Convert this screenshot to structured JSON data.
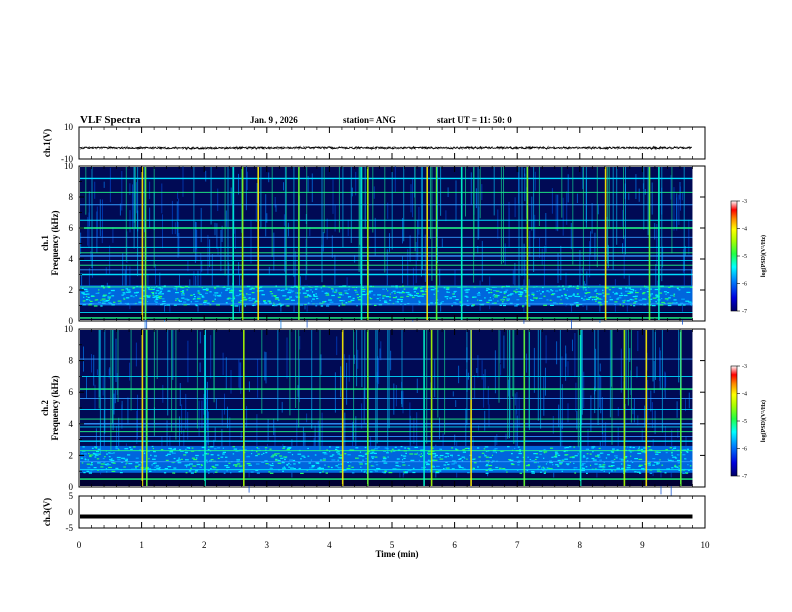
{
  "header": {
    "title": "VLF Spectra",
    "date": "Jan. 9 , 2026",
    "station": "station= ANG",
    "start": "start UT =  11: 50: 0"
  },
  "colors": {
    "axis": "#000000",
    "background": "#ffffff",
    "waveform": "#000000",
    "colormap": [
      "#000066",
      "#0000cc",
      "#0044ff",
      "#00aaff",
      "#00ffee",
      "#22ff44",
      "#aaff00",
      "#ffff00",
      "#ff8800",
      "#ff0000",
      "#ffffff"
    ]
  },
  "chart_data": [
    {
      "type": "line",
      "name": "ch1-voltage",
      "ylabel": "ch.1(V)",
      "ylim": [
        -10,
        10
      ],
      "yticks": [
        "10",
        "-10"
      ],
      "x": [
        0,
        1,
        2,
        3,
        4,
        5,
        6,
        7,
        8,
        9,
        9.8
      ],
      "values": [
        -3,
        -3,
        -3.2,
        -3,
        -3,
        -3.1,
        -3,
        -3,
        -3,
        -3.1,
        -3
      ],
      "noise_amplitude": 0.6
    },
    {
      "type": "heatmap",
      "name": "ch1-spectrogram",
      "ylabel_1": "ch.1",
      "ylabel_2": "Frequency  (kHz)",
      "ylim": [
        0,
        10
      ],
      "xlim": [
        0,
        10
      ],
      "data_xmax": 9.8,
      "yticks": [
        "0",
        "2",
        "4",
        "6",
        "8",
        "10"
      ],
      "colorbar": {
        "label": "log(PSD)(V²/Hz)",
        "range": [
          -7,
          -3
        ],
        "ticks": [
          "-3",
          "-4",
          "-5",
          "-6",
          "-7"
        ]
      },
      "hum_lines_khz": [
        0.2,
        0.55,
        1.1,
        2.2,
        3.0,
        3.3,
        3.6,
        3.9,
        4.2,
        4.4,
        4.75,
        5.4,
        6.0,
        6.5,
        7.5,
        8.3,
        9.2
      ],
      "noise_band_khz": [
        1.0,
        2.3
      ],
      "sferic_times_min": [
        1.0,
        1.05,
        2.45,
        2.6,
        2.85,
        3.5,
        4.5,
        4.6,
        5.55,
        5.7,
        6.1,
        7.15,
        8.4,
        9.1,
        9.25
      ]
    },
    {
      "type": "heatmap",
      "name": "ch2-spectrogram",
      "ylabel_1": "ch.2",
      "ylabel_2": "Frequency  (kHz)",
      "ylim": [
        0,
        10
      ],
      "xlim": [
        0,
        10
      ],
      "data_xmax": 9.8,
      "yticks": [
        "0",
        "2",
        "4",
        "6",
        "8",
        "10"
      ],
      "colorbar": {
        "label": "log(PSD)(V²/Hz)",
        "range": [
          -7,
          -3
        ],
        "ticks": [
          "-3",
          "-4",
          "-5",
          "-6",
          "-7"
        ]
      },
      "hum_lines_khz": [
        0.5,
        1.1,
        1.6,
        2.3,
        2.9,
        3.2,
        3.5,
        3.8,
        4.0,
        4.3,
        4.9,
        5.6,
        6.2,
        7.0,
        8.1
      ],
      "noise_band_khz": [
        0.9,
        2.6
      ],
      "sferic_times_min": [
        1.0,
        1.07,
        2.0,
        2.62,
        4.2,
        4.6,
        5.5,
        5.62,
        6.25,
        7.1,
        8.0,
        8.7,
        9.05,
        9.6
      ]
    },
    {
      "type": "line",
      "name": "ch3-voltage",
      "ylabel": "ch.3(V)",
      "ylim": [
        -5,
        5
      ],
      "yticks": [
        "5",
        "0",
        "-5"
      ],
      "x": [
        0,
        9.8
      ],
      "values": [
        -1.4,
        -1.4
      ],
      "xlabel": "Time  (min)",
      "xlim": [
        0,
        10
      ],
      "xticks": [
        "0",
        "1",
        "2",
        "3",
        "4",
        "5",
        "6",
        "7",
        "8",
        "9",
        "10"
      ]
    }
  ]
}
